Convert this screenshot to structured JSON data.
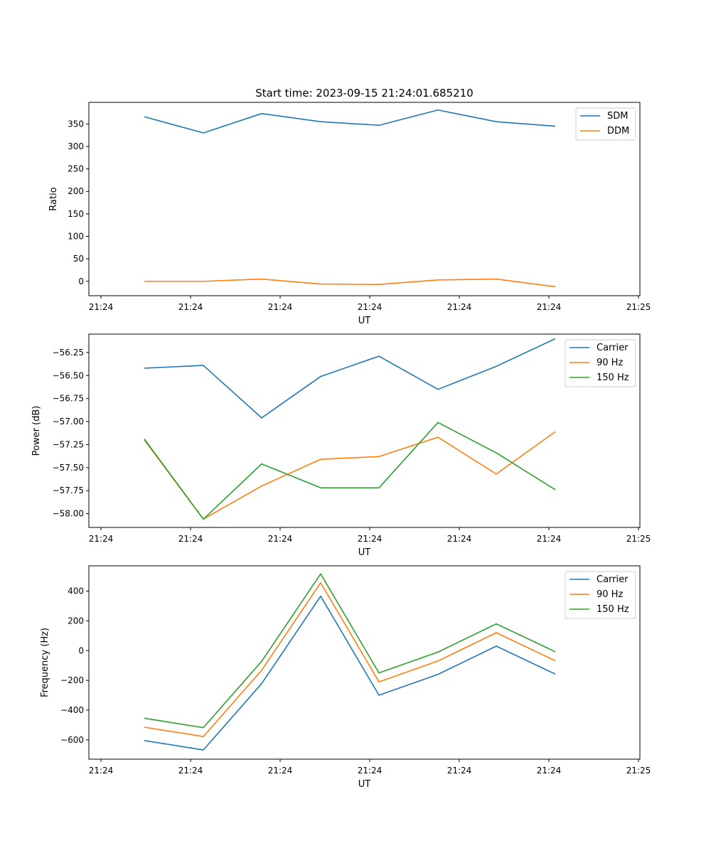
{
  "chart_data": [
    {
      "type": "line",
      "title": "Start time: 2023-09-15 21:24:01.685210",
      "xlabel": "UT",
      "ylabel": "Ratio",
      "x_tick_labels": [
        "21:24",
        "21:24",
        "21:24",
        "21:24",
        "21:24",
        "21:24",
        "21:25"
      ],
      "ylim": [
        -32,
        398
      ],
      "yticks": [
        0,
        50,
        100,
        150,
        200,
        250,
        300,
        350
      ],
      "legend_position": "top-right",
      "series": [
        {
          "name": "SDM",
          "color": "#1f77b4",
          "values": [
            366,
            330,
            373,
            355,
            347,
            381,
            355,
            345
          ]
        },
        {
          "name": "DDM",
          "color": "#ff7f0e",
          "values": [
            0,
            0,
            5,
            -6,
            -7,
            3,
            5,
            -12
          ]
        }
      ]
    },
    {
      "type": "line",
      "title": "",
      "xlabel": "UT",
      "ylabel": "Power (dB)",
      "x_tick_labels": [
        "21:24",
        "21:24",
        "21:24",
        "21:24",
        "21:24",
        "21:24",
        "21:25"
      ],
      "ylim": [
        -58.15,
        -56.05
      ],
      "yticks": [
        -58.0,
        -57.75,
        -57.5,
        -57.25,
        -57.0,
        -56.75,
        -56.5,
        -56.25
      ],
      "ytick_labels": [
        "−58.00",
        "−57.75",
        "−57.50",
        "−57.25",
        "−57.00",
        "−56.75",
        "−56.50",
        "−56.25"
      ],
      "legend_position": "top-right",
      "series": [
        {
          "name": "Carrier",
          "color": "#1f77b4",
          "values": [
            -56.42,
            -56.39,
            -56.96,
            -56.51,
            -56.29,
            -56.65,
            -56.4,
            -56.1
          ]
        },
        {
          "name": "90 Hz",
          "color": "#ff7f0e",
          "values": [
            -57.2,
            -58.06,
            -57.7,
            -57.41,
            -57.38,
            -57.17,
            -57.57,
            -57.11
          ]
        },
        {
          "name": "150 Hz",
          "color": "#2ca02c",
          "values": [
            -57.19,
            -58.06,
            -57.46,
            -57.72,
            -57.72,
            -57.01,
            -57.34,
            -57.74
          ]
        }
      ]
    },
    {
      "type": "line",
      "title": "",
      "xlabel": "UT",
      "ylabel": "Frequency (Hz)",
      "x_tick_labels": [
        "21:24",
        "21:24",
        "21:24",
        "21:24",
        "21:24",
        "21:24",
        "21:25"
      ],
      "ylim": [
        -730,
        570
      ],
      "yticks": [
        -600,
        -400,
        -200,
        0,
        200,
        400
      ],
      "ytick_labels": [
        "−600",
        "−400",
        "−200",
        "0",
        "200",
        "400"
      ],
      "legend_position": "top-right",
      "series": [
        {
          "name": "Carrier",
          "color": "#1f77b4",
          "values": [
            -605,
            -668,
            -222,
            366,
            -300,
            -160,
            30,
            -158
          ]
        },
        {
          "name": "90 Hz",
          "color": "#ff7f0e",
          "values": [
            -515,
            -578,
            -132,
            456,
            -210,
            -70,
            120,
            -68
          ]
        },
        {
          "name": "150 Hz",
          "color": "#2ca02c",
          "values": [
            -455,
            -518,
            -72,
            516,
            -150,
            -10,
            180,
            -8
          ]
        }
      ]
    }
  ]
}
